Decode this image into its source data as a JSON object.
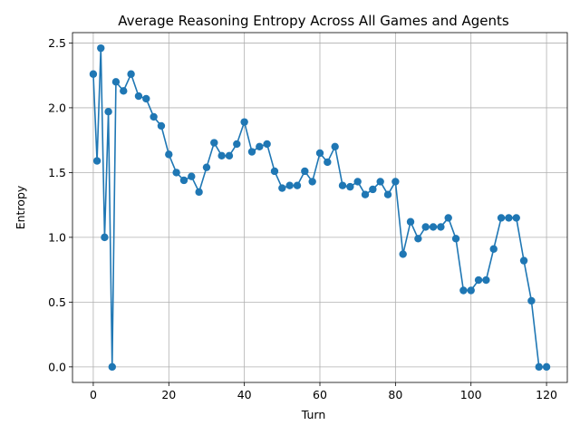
{
  "chart_data": {
    "type": "line",
    "title": "Average Reasoning Entropy Across All Games and Agents",
    "xlabel": "Turn",
    "ylabel": "Entropy",
    "xlim": [
      -5.5,
      125.5
    ],
    "ylim": [
      -0.12,
      2.58
    ],
    "xticks": [
      0,
      20,
      40,
      60,
      80,
      100,
      120
    ],
    "yticks": [
      0.0,
      0.5,
      1.0,
      1.5,
      2.0,
      2.5
    ],
    "xtick_labels": [
      "0",
      "20",
      "40",
      "60",
      "80",
      "100",
      "120"
    ],
    "ytick_labels": [
      "0.0",
      "0.5",
      "1.0",
      "1.5",
      "2.0",
      "2.5"
    ],
    "grid": true,
    "marker": "circle",
    "color": "#1f77b4",
    "series": [
      {
        "x": [
          0,
          1,
          2,
          3,
          4,
          5,
          6,
          8,
          10,
          12,
          14,
          16,
          18,
          20,
          22,
          24,
          26,
          28,
          30,
          32,
          34,
          36,
          38,
          40,
          42,
          44,
          46,
          48,
          50,
          52,
          54,
          56,
          58,
          60,
          62,
          64,
          66,
          68,
          70,
          72,
          74,
          76,
          78,
          80,
          82,
          84,
          86,
          88,
          90,
          92,
          94,
          96,
          98,
          100,
          102,
          104,
          106,
          108,
          110,
          112,
          114,
          116,
          118,
          120
        ],
        "y": [
          2.26,
          1.59,
          2.46,
          1.0,
          1.97,
          0.0,
          2.2,
          2.13,
          2.26,
          2.09,
          2.07,
          1.93,
          1.86,
          1.64,
          1.5,
          1.44,
          1.47,
          1.35,
          1.54,
          1.73,
          1.63,
          1.63,
          1.72,
          1.89,
          1.66,
          1.7,
          1.72,
          1.51,
          1.38,
          1.4,
          1.4,
          1.51,
          1.43,
          1.65,
          1.58,
          1.7,
          1.4,
          1.39,
          1.43,
          1.33,
          1.37,
          1.43,
          1.33,
          1.43,
          0.87,
          1.12,
          0.99,
          1.08,
          1.08,
          1.08,
          1.15,
          0.99,
          0.59,
          0.59,
          0.67,
          0.67,
          0.91,
          1.15,
          1.15,
          1.15,
          0.82,
          0.51,
          0.0,
          0.0
        ]
      }
    ]
  }
}
